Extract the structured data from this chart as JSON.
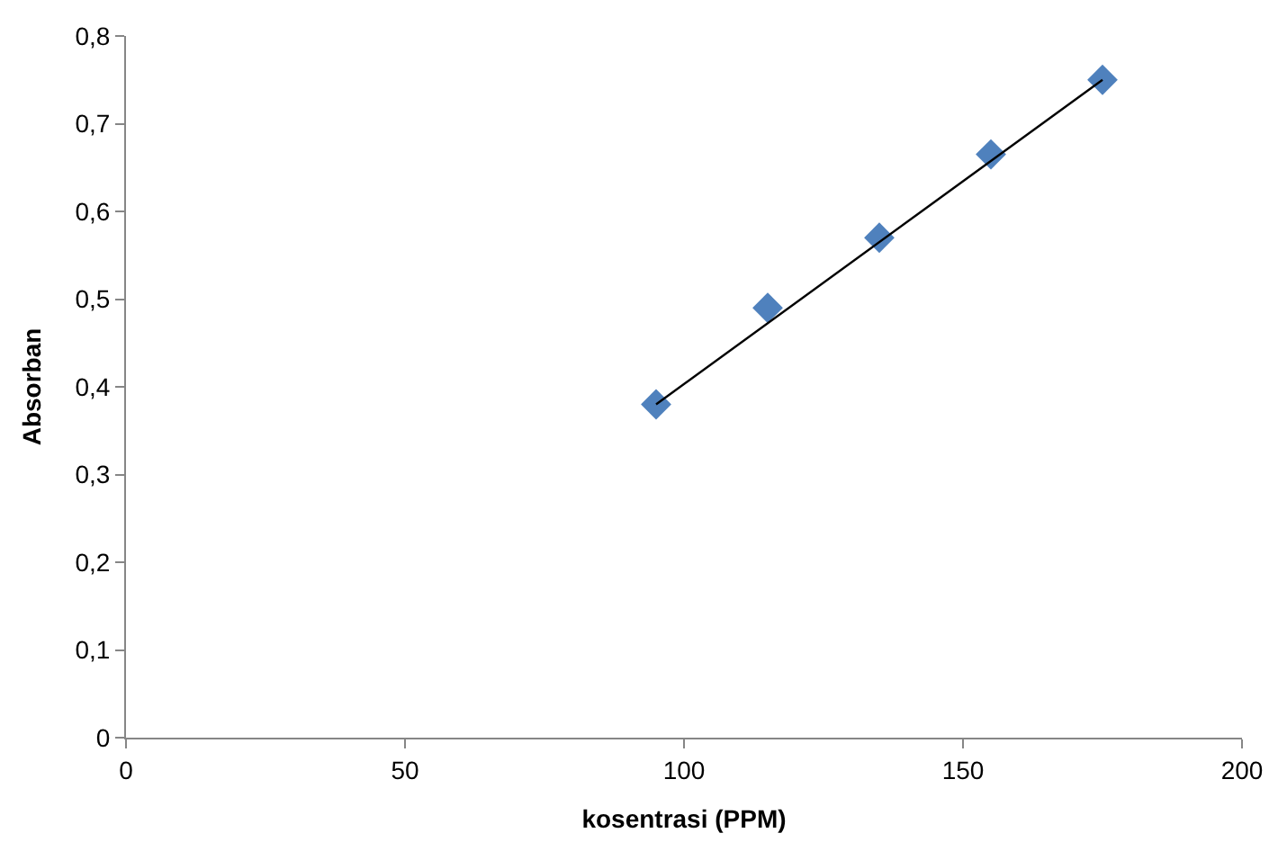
{
  "chart_data": {
    "type": "scatter",
    "xlabel": "kosentrasi (PPM)",
    "ylabel": "Absorban",
    "series": [
      {
        "color": "#4f81bd",
        "marker": "diamond",
        "x": [
          95,
          115,
          135,
          155,
          175
        ],
        "values": [
          0.38,
          0.49,
          0.57,
          0.665,
          0.75
        ]
      },
      {
        "type": "line",
        "color": "#000000",
        "marker": "none",
        "line_style": "solid",
        "x": [
          95,
          175
        ],
        "values": [
          0.38,
          0.75
        ]
      }
    ],
    "xlim": [
      0,
      200
    ],
    "xticks": [
      0,
      50,
      100,
      150,
      200
    ],
    "ylim": [
      0,
      0.8
    ],
    "yticks": [
      0,
      {
        "value": 0.1,
        "label": "0,1"
      },
      {
        "value": 0.2,
        "label": "0,2"
      },
      {
        "value": 0.3,
        "label": "0,3"
      },
      {
        "value": 0.4,
        "label": "0,4"
      },
      {
        "value": 0.5,
        "label": "0,5"
      },
      {
        "value": 0.6,
        "label": "0,6"
      },
      {
        "value": 0.7,
        "label": "0,7"
      },
      {
        "value": 0.8,
        "label": "0,8"
      }
    ]
  }
}
